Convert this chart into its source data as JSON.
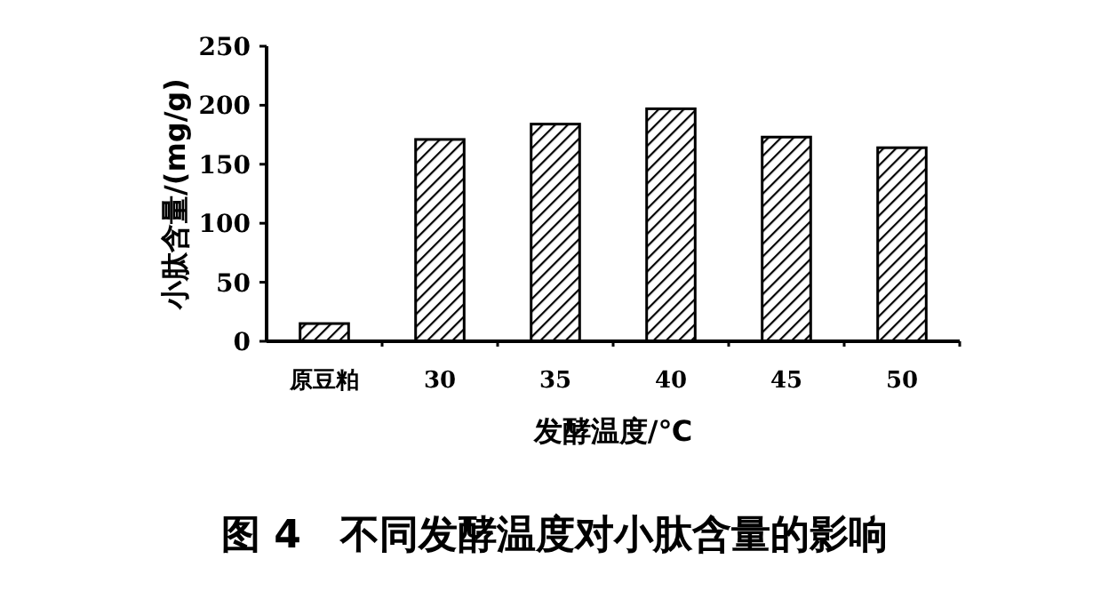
{
  "chart_data": {
    "type": "bar",
    "title": "图 4　不同发酵温度对小肽含量的影响",
    "xlabel": "发酵温度/℃",
    "ylabel": "小肽含量/(mg/g)",
    "categories": [
      "原豆粕",
      "30",
      "35",
      "40",
      "45",
      "50"
    ],
    "values": [
      15,
      171,
      184,
      197,
      173,
      164
    ],
    "color": "#000000",
    "ylim": [
      0,
      250
    ],
    "yticks": [
      0,
      50,
      100,
      150,
      200,
      250
    ],
    "grid": false
  }
}
